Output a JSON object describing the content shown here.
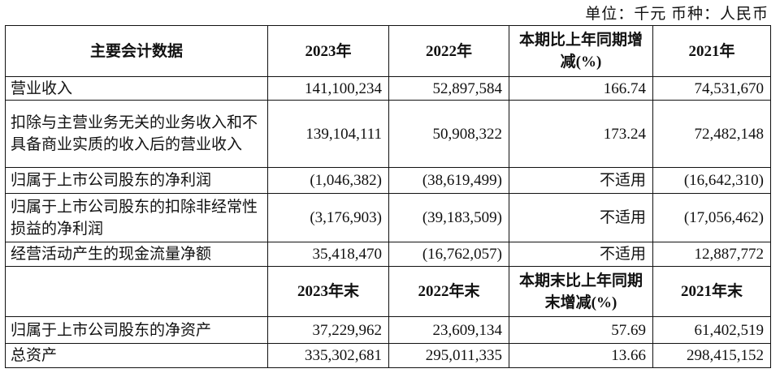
{
  "unit_line": "单位：千元   币种：人民币",
  "header1": [
    "主要会计数据",
    "2023年",
    "2022年",
    "本期比上年同期增减(%)",
    "2021年"
  ],
  "rows1": [
    {
      "label": "营业收入",
      "v2023": "141,100,234",
      "v2022": "52,897,584",
      "change": "166.74",
      "v2021": "74,531,670"
    },
    {
      "label": "扣除与主营业务无关的业务收入和不具备商业实质的收入后的营业收入",
      "v2023": "139,104,111",
      "v2022": "50,908,322",
      "change": "173.24",
      "v2021": "72,482,148"
    },
    {
      "label": "归属于上市公司股东的净利润",
      "v2023": "(1,046,382)",
      "v2022": "(38,619,499)",
      "change": "不适用",
      "v2021": "(16,642,310)"
    },
    {
      "label": "归属于上市公司股东的扣除非经常性损益的净利润",
      "v2023": "(3,176,903)",
      "v2022": "(39,183,509)",
      "change": "不适用",
      "v2021": "(17,056,462)"
    },
    {
      "label": "经营活动产生的现金流量净额",
      "v2023": "35,418,470",
      "v2022": "(16,762,057)",
      "change": "不适用",
      "v2021": "12,887,772"
    }
  ],
  "header2": [
    "",
    "2023年末",
    "2022年末",
    "本期末比上年同期末增减(%)",
    "2021年末"
  ],
  "rows2": [
    {
      "label": "归属于上市公司股东的净资产",
      "v2023": "37,229,962",
      "v2022": "23,609,134",
      "change": "57.69",
      "v2021": "61,402,519"
    },
    {
      "label": "总资产",
      "v2023": "335,302,681",
      "v2022": "295,011,335",
      "change": "13.66",
      "v2021": "298,415,152"
    }
  ]
}
